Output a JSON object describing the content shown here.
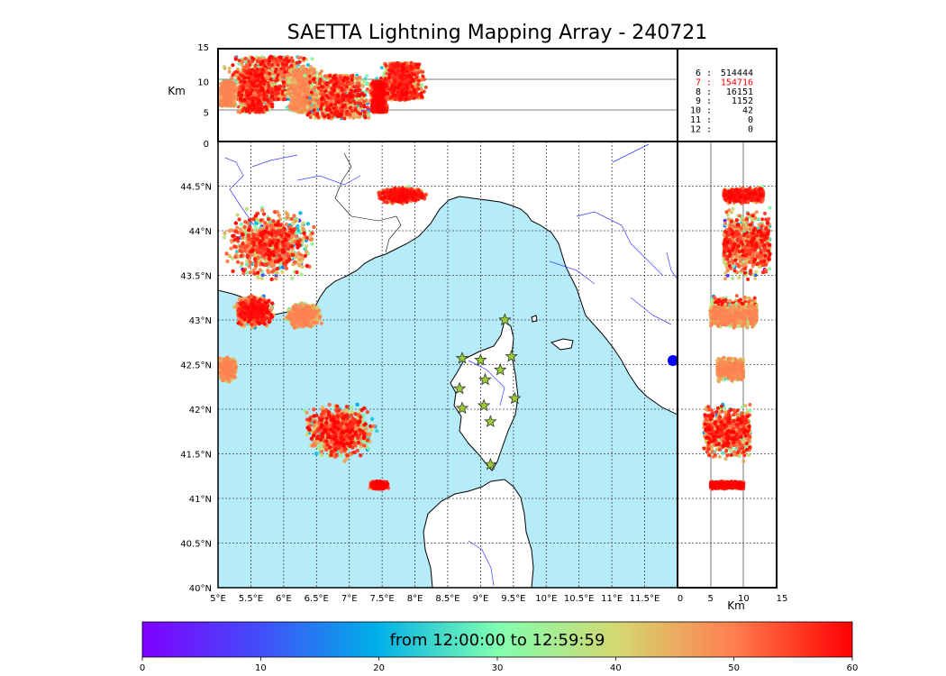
{
  "title": "SAETTA Lightning Mapping Array - 240721",
  "colors": {
    "sea": "#b6ecfa",
    "land": "#ffffff",
    "river": "#3a3aff",
    "coast": "#000000",
    "station_star": "#9acd32",
    "highlight_count": "#ff0000"
  },
  "icons": {
    "stations": "star-icon"
  },
  "altitude_axis": {
    "label": "Km",
    "ticks": [
      "15",
      "10",
      "5",
      "0"
    ],
    "ylim": [
      0,
      15
    ]
  },
  "x_altitude_axis": {
    "label": "Km",
    "ticks": [
      "0",
      "5",
      "10",
      "15"
    ],
    "xlim": [
      0,
      15
    ]
  },
  "lon_ticks": [
    "5°E",
    "5.5°E",
    "6°E",
    "6.5°E",
    "7°E",
    "7.5°E",
    "8°E",
    "8.5°E",
    "9°E",
    "9.5°E",
    "10°E",
    "10.5°E",
    "11°E",
    "11.5°E"
  ],
  "lat_ticks": [
    "44.5°N",
    "44°N",
    "43.5°N",
    "43°N",
    "42.5°N",
    "42°N",
    "41.5°N",
    "41°N",
    "40.5°N",
    "40°N"
  ],
  "extent": {
    "lon": [
      5,
      12
    ],
    "lat": [
      40,
      45
    ]
  },
  "station_counts": [
    {
      "stations": "6",
      "count": "514444",
      "highlight": false
    },
    {
      "stations": "7",
      "count": "154716",
      "highlight": true
    },
    {
      "stations": "8",
      "count": "16151",
      "highlight": false
    },
    {
      "stations": "9",
      "count": "1152",
      "highlight": false
    },
    {
      "stations": "10",
      "count": "42",
      "highlight": false
    },
    {
      "stations": "11",
      "count": "0",
      "highlight": false
    },
    {
      "stations": "12",
      "count": "0",
      "highlight": false
    }
  ],
  "stations": [
    {
      "lon": 9.37,
      "lat": 43.0
    },
    {
      "lon": 8.72,
      "lat": 42.57
    },
    {
      "lon": 9.0,
      "lat": 42.55
    },
    {
      "lon": 9.47,
      "lat": 42.59
    },
    {
      "lon": 9.3,
      "lat": 42.44
    },
    {
      "lon": 9.07,
      "lat": 42.33
    },
    {
      "lon": 8.68,
      "lat": 42.23
    },
    {
      "lon": 9.52,
      "lat": 42.12
    },
    {
      "lon": 8.72,
      "lat": 42.01
    },
    {
      "lon": 9.05,
      "lat": 42.04
    },
    {
      "lon": 9.15,
      "lat": 41.86
    },
    {
      "lon": 9.15,
      "lat": 41.38
    }
  ],
  "colorbar": {
    "range_label": "from 12:00:00 to 12:59:59",
    "ticks": [
      "0",
      "10",
      "20",
      "30",
      "40",
      "50",
      "60"
    ],
    "vmin": 0,
    "vmax": 60
  },
  "chart_data": {
    "type": "scatter",
    "title": "SAETTA Lightning Mapping Array - 240721",
    "xlabel": "",
    "ylabel": "",
    "x_range_lon": [
      5,
      12
    ],
    "y_range_lat": [
      40,
      45
    ],
    "color_scale": "minutes after 12:00 (0–60)",
    "clusters": [
      {
        "lon": [
          5.0,
          6.6
        ],
        "lat": [
          43.4,
          44.3
        ],
        "alt_km": [
          7,
          14
        ],
        "minutes": [
          0,
          60
        ]
      },
      {
        "lon": [
          5.2,
          5.9
        ],
        "lat": [
          42.9,
          43.3
        ],
        "alt_km": [
          5,
          12
        ],
        "minutes": [
          10,
          60
        ]
      },
      {
        "lon": [
          6.0,
          6.6
        ],
        "lat": [
          42.9,
          43.2
        ],
        "alt_km": [
          5,
          12
        ],
        "minutes": [
          20,
          50
        ]
      },
      {
        "lon": [
          5.0,
          5.3
        ],
        "lat": [
          42.3,
          42.6
        ],
        "alt_km": [
          6,
          10
        ],
        "minutes": [
          20,
          50
        ]
      },
      {
        "lon": [
          7.4,
          8.2
        ],
        "lat": [
          44.3,
          44.5
        ],
        "alt_km": [
          7,
          13
        ],
        "minutes": [
          20,
          60
        ]
      },
      {
        "lon": [
          6.2,
          7.5
        ],
        "lat": [
          41.4,
          42.1
        ],
        "alt_km": [
          4,
          11
        ],
        "minutes": [
          5,
          60
        ]
      },
      {
        "lon": [
          7.3,
          7.6
        ],
        "lat": [
          41.1,
          41.2
        ],
        "alt_km": [
          5,
          10
        ],
        "minutes": [
          40,
          60
        ]
      }
    ]
  }
}
